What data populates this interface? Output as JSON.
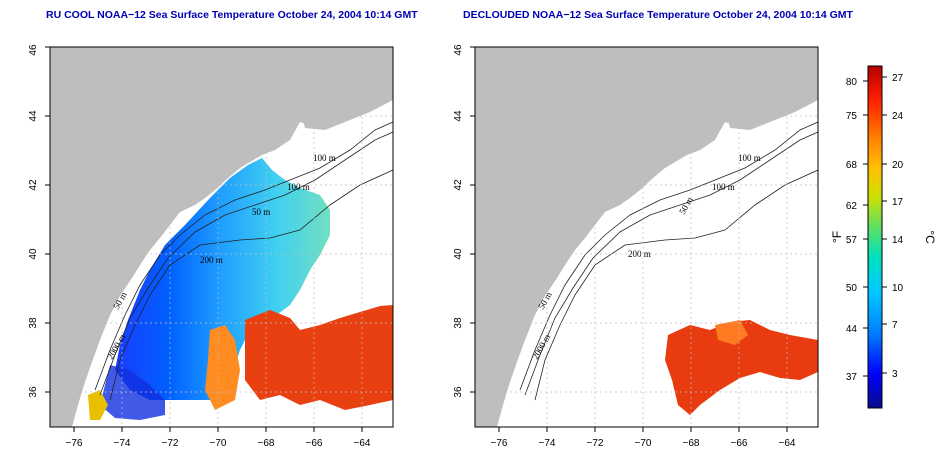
{
  "panels": [
    {
      "title": "RU COOL NOAA−12 Sea Surface Temperature October 24, 2004 10:14 GMT",
      "contour_labels": [
        "100 m",
        "100 m",
        "50 m",
        "200 m",
        "50 m",
        "2000 m"
      ]
    },
    {
      "title": "DECLOUDED NOAA−12 Sea Surface Temperature October 24, 2004 10:14 GMT",
      "contour_labels": [
        "100 m",
        "100 m",
        "50 m",
        "200 m",
        "50 m",
        "2000 m"
      ]
    }
  ],
  "axes": {
    "x_ticks": [
      "−76",
      "−74",
      "−72",
      "−70",
      "−68",
      "−66",
      "−64"
    ],
    "y_ticks": [
      "36",
      "38",
      "40",
      "42",
      "44",
      "46"
    ]
  },
  "colorbar": {
    "celsius_ticks": [
      "27",
      "24",
      "20",
      "17",
      "14",
      "10",
      "7",
      "3"
    ],
    "fahrenheit_ticks": [
      "80",
      "75",
      "68",
      "62",
      "57",
      "50",
      "44",
      "37"
    ],
    "celsius_unit": "°C",
    "fahrenheit_unit": "°F"
  },
  "colors": {
    "land": "#bebebe",
    "ocean": "#ffffff",
    "title": "#0000b4",
    "grid": "#bfbfbf",
    "scale": [
      "#0a0a8c",
      "#0000ff",
      "#0080ff",
      "#00c8ff",
      "#00e0c0",
      "#60e060",
      "#d0e000",
      "#ffc000",
      "#ff8000",
      "#ff2000",
      "#b40000"
    ]
  }
}
